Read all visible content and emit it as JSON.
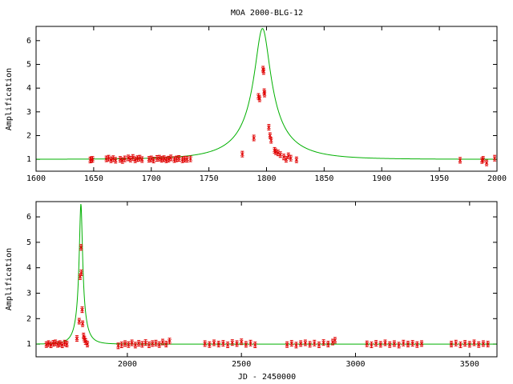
{
  "chart_data": [
    {
      "type": "scatter",
      "title": "MOA 2000-BLG-12",
      "xlabel": "",
      "ylabel": "Amplification",
      "xlim": [
        1600,
        2000
      ],
      "ylim": [
        0.5,
        6.6
      ],
      "xticks": [
        1600,
        1650,
        1700,
        1750,
        1800,
        1850,
        1900,
        1950,
        2000
      ],
      "yticks": [
        1,
        2,
        3,
        4,
        5,
        6
      ],
      "model": {
        "name": "fit",
        "t0": 1796.5,
        "u0": 0.155,
        "tE": 45,
        "color": "#00b000"
      },
      "series": [
        {
          "color": "#e00000",
          "points": [
            [
              1647,
              0.97
            ],
            [
              1648,
              0.99
            ],
            [
              1649,
              1.0
            ],
            [
              1661,
              1.02
            ],
            [
              1663,
              1.05
            ],
            [
              1665,
              0.98
            ],
            [
              1667,
              1.03
            ],
            [
              1669,
              0.96
            ],
            [
              1673,
              1.0
            ],
            [
              1675,
              0.95
            ],
            [
              1677,
              1.02
            ],
            [
              1680,
              1.06
            ],
            [
              1682,
              1.01
            ],
            [
              1684,
              1.08
            ],
            [
              1686,
              0.98
            ],
            [
              1688,
              1.03
            ],
            [
              1690,
              1.05
            ],
            [
              1692,
              0.99
            ],
            [
              1698,
              1.0
            ],
            [
              1700,
              1.02
            ],
            [
              1702,
              0.97
            ],
            [
              1705,
              1.04
            ],
            [
              1707,
              1.05
            ],
            [
              1709,
              1.0
            ],
            [
              1711,
              1.03
            ],
            [
              1713,
              0.98
            ],
            [
              1715,
              1.01
            ],
            [
              1717,
              1.06
            ],
            [
              1720,
              0.99
            ],
            [
              1722,
              1.02
            ],
            [
              1724,
              1.04
            ],
            [
              1727,
              0.98
            ],
            [
              1729,
              1.01
            ],
            [
              1731,
              1.0
            ],
            [
              1734,
              1.02
            ],
            [
              1779,
              1.22
            ],
            [
              1789,
              1.9
            ],
            [
              1793,
              3.65
            ],
            [
              1794,
              3.55
            ],
            [
              1797,
              4.8
            ],
            [
              1797.5,
              4.7
            ],
            [
              1798,
              3.85
            ],
            [
              1798.3,
              3.75
            ],
            [
              1802,
              2.35
            ],
            [
              1803,
              2.0
            ],
            [
              1804,
              1.8
            ],
            [
              1807,
              1.38
            ],
            [
              1808,
              1.32
            ],
            [
              1810,
              1.27
            ],
            [
              1812,
              1.2
            ],
            [
              1815,
              1.1
            ],
            [
              1817,
              1.0
            ],
            [
              1819,
              1.15
            ],
            [
              1821,
              1.05
            ],
            [
              1826,
              0.98
            ],
            [
              1968,
              0.96
            ],
            [
              1987,
              0.95
            ],
            [
              1988,
              1.0
            ],
            [
              1991,
              0.85
            ],
            [
              1998,
              1.05
            ]
          ]
        }
      ]
    },
    {
      "type": "scatter",
      "title": "",
      "xlabel": "JD - 2450000",
      "ylabel": "Amplification",
      "xlim": [
        1600,
        3620
      ],
      "ylim": [
        0.5,
        6.6
      ],
      "xticks": [
        2000,
        2500,
        3000,
        3500
      ],
      "yticks": [
        1,
        2,
        3,
        4,
        5,
        6
      ],
      "model": {
        "name": "fit",
        "t0": 1796.5,
        "u0": 0.155,
        "tE": 45,
        "color": "#00b000"
      },
      "series": [
        {
          "color": "#e00000",
          "points": [
            [
              1645,
              0.98
            ],
            [
              1655,
              1.02
            ],
            [
              1665,
              0.97
            ],
            [
              1675,
              1.03
            ],
            [
              1685,
              1.05
            ],
            [
              1695,
              0.99
            ],
            [
              1705,
              1.02
            ],
            [
              1715,
              0.97
            ],
            [
              1725,
              1.04
            ],
            [
              1735,
              1.0
            ],
            [
              1779,
              1.22
            ],
            [
              1789,
              1.9
            ],
            [
              1793,
              3.65
            ],
            [
              1797,
              4.8
            ],
            [
              1798,
              3.8
            ],
            [
              1802,
              2.35
            ],
            [
              1804,
              1.8
            ],
            [
              1808,
              1.32
            ],
            [
              1812,
              1.2
            ],
            [
              1817,
              1.1
            ],
            [
              1825,
              1.0
            ],
            [
              1960,
              0.93
            ],
            [
              1975,
              0.97
            ],
            [
              1990,
              1.02
            ],
            [
              2005,
              0.98
            ],
            [
              2020,
              1.05
            ],
            [
              2035,
              0.96
            ],
            [
              2050,
              1.03
            ],
            [
              2065,
              0.99
            ],
            [
              2080,
              1.06
            ],
            [
              2095,
              0.97
            ],
            [
              2110,
              1.02
            ],
            [
              2125,
              1.04
            ],
            [
              2140,
              0.98
            ],
            [
              2155,
              1.08
            ],
            [
              2170,
              1.0
            ],
            [
              2185,
              1.12
            ],
            [
              2340,
              1.02
            ],
            [
              2360,
              0.98
            ],
            [
              2380,
              1.05
            ],
            [
              2400,
              1.0
            ],
            [
              2420,
              1.03
            ],
            [
              2440,
              0.97
            ],
            [
              2460,
              1.06
            ],
            [
              2480,
              1.02
            ],
            [
              2500,
              1.09
            ],
            [
              2520,
              0.99
            ],
            [
              2540,
              1.04
            ],
            [
              2560,
              0.97
            ],
            [
              2700,
              0.98
            ],
            [
              2720,
              1.03
            ],
            [
              2740,
              0.96
            ],
            [
              2760,
              1.02
            ],
            [
              2780,
              1.05
            ],
            [
              2800,
              0.99
            ],
            [
              2820,
              1.04
            ],
            [
              2840,
              0.97
            ],
            [
              2860,
              1.06
            ],
            [
              2880,
              1.0
            ],
            [
              2900,
              1.08
            ],
            [
              2910,
              1.15
            ],
            [
              3050,
              1.01
            ],
            [
              3070,
              0.97
            ],
            [
              3090,
              1.03
            ],
            [
              3110,
              0.99
            ],
            [
              3130,
              1.05
            ],
            [
              3150,
              0.98
            ],
            [
              3170,
              1.02
            ],
            [
              3190,
              0.96
            ],
            [
              3210,
              1.04
            ],
            [
              3230,
              1.0
            ],
            [
              3250,
              1.03
            ],
            [
              3270,
              0.98
            ],
            [
              3290,
              1.02
            ],
            [
              3420,
              1.0
            ],
            [
              3440,
              1.04
            ],
            [
              3460,
              0.97
            ],
            [
              3480,
              1.03
            ],
            [
              3500,
              0.99
            ],
            [
              3520,
              1.05
            ],
            [
              3540,
              0.98
            ],
            [
              3560,
              1.02
            ],
            [
              3580,
              1.0
            ]
          ]
        }
      ]
    }
  ]
}
